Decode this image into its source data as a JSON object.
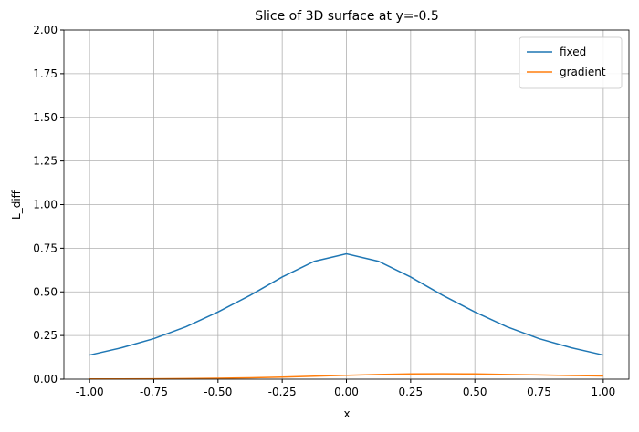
{
  "chart_data": {
    "type": "line",
    "title": "Slice of 3D surface at y=-0.5",
    "xlabel": "x",
    "ylabel": "L_diff",
    "x": [
      -1,
      -0.875,
      -0.75,
      -0.625,
      -0.5,
      -0.375,
      -0.25,
      -0.125,
      0,
      0.125,
      0.25,
      0.375,
      0.5,
      0.625,
      0.75,
      0.875,
      1
    ],
    "series": [
      {
        "name": "fixed",
        "color": "#1f77b4",
        "values": [
          0.138,
          0.18,
          0.232,
          0.3,
          0.385,
          0.48,
          0.585,
          0.675,
          0.718,
          0.675,
          0.585,
          0.48,
          0.385,
          0.3,
          0.232,
          0.18,
          0.138
        ]
      },
      {
        "name": "gradient",
        "color": "#ff7f0e",
        "values": [
          0.001,
          0.001,
          0.002,
          0.003,
          0.005,
          0.008,
          0.012,
          0.017,
          0.022,
          0.027,
          0.03,
          0.031,
          0.03,
          0.027,
          0.024,
          0.021,
          0.018
        ]
      }
    ],
    "xlim": [
      -1.1,
      1.1
    ],
    "xticks": [
      {
        "value": -1,
        "label": "-1.00"
      },
      -0.75,
      {
        "value": -0.5,
        "label": "-0.50"
      },
      -0.25,
      {
        "value": 0,
        "label": "0.00"
      },
      0.25,
      {
        "value": 0.5,
        "label": "0.50"
      },
      0.75,
      {
        "value": 1,
        "label": "1.00"
      }
    ],
    "ylim": [
      0,
      2
    ],
    "yticks": [
      {
        "value": 0,
        "label": "0.00"
      },
      0.25,
      {
        "value": 0.5,
        "label": "0.50"
      },
      0.75,
      {
        "value": 1,
        "label": "1.00"
      },
      1.25,
      {
        "value": 1.5,
        "label": "1.50"
      },
      1.75,
      {
        "value": 2,
        "label": "2.00"
      }
    ],
    "grid": true,
    "legend": "upper right"
  }
}
